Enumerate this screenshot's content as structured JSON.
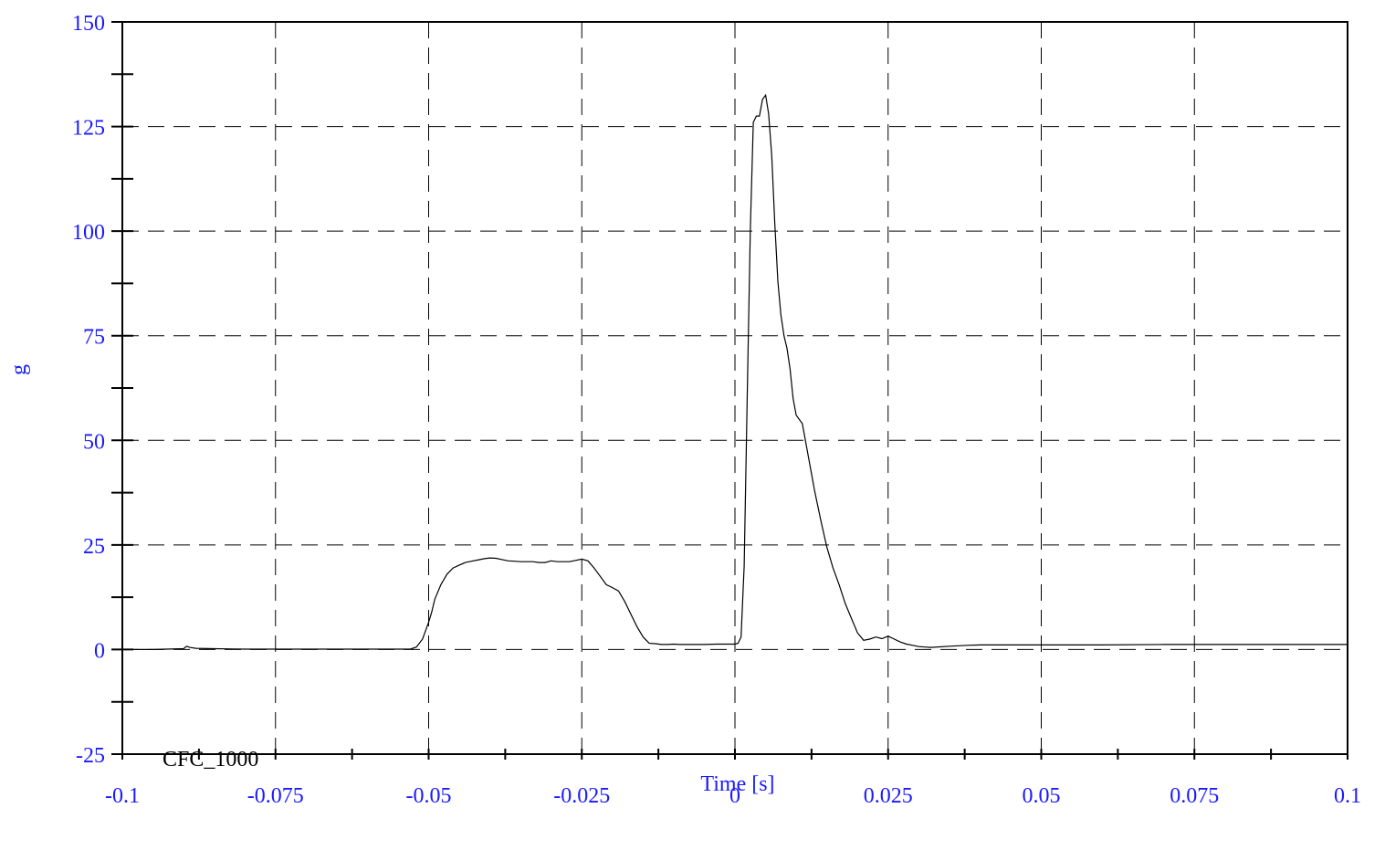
{
  "chart_data": {
    "type": "line",
    "title": "",
    "xlabel": "Time [s]",
    "ylabel": "g",
    "xlim": [
      -0.1,
      0.1
    ],
    "ylim": [
      -25,
      150
    ],
    "x_ticks": [
      -0.1,
      -0.075,
      -0.05,
      -0.025,
      0,
      0.025,
      0.05,
      0.075,
      0.1
    ],
    "x_tick_labels": [
      "-0.1",
      "-0.075",
      "-0.05",
      "-0.025",
      "0",
      "0.025",
      "0.05",
      "0.075",
      "0.1"
    ],
    "y_ticks": [
      -25,
      0,
      25,
      50,
      75,
      100,
      125,
      150
    ],
    "y_tick_labels": [
      "-25",
      "0",
      "25",
      "50",
      "75",
      "100",
      "125",
      "150"
    ],
    "grid": true,
    "annotations": [
      "CFC_1000"
    ],
    "series": [
      {
        "x": [
          -0.1,
          -0.095,
          -0.09,
          -0.0895,
          -0.089,
          -0.088,
          -0.085,
          -0.08,
          -0.07,
          -0.06,
          -0.055,
          -0.053,
          -0.052,
          -0.051,
          -0.05,
          -0.0495,
          -0.049,
          -0.048,
          -0.047,
          -0.046,
          -0.045,
          -0.044,
          -0.043,
          -0.042,
          -0.041,
          -0.04,
          -0.039,
          -0.038,
          -0.037,
          -0.036,
          -0.035,
          -0.034,
          -0.033,
          -0.032,
          -0.031,
          -0.03,
          -0.029,
          -0.028,
          -0.027,
          -0.026,
          -0.025,
          -0.024,
          -0.023,
          -0.022,
          -0.021,
          -0.02,
          -0.019,
          -0.018,
          -0.017,
          -0.016,
          -0.015,
          -0.014,
          -0.013,
          -0.012,
          -0.011,
          -0.01,
          -0.009,
          -0.007,
          -0.005,
          -0.003,
          -0.001,
          0.0,
          0.0005,
          0.001,
          0.0015,
          0.002,
          0.0025,
          0.003,
          0.0035,
          0.004,
          0.0045,
          0.005,
          0.0055,
          0.006,
          0.0065,
          0.007,
          0.0075,
          0.008,
          0.0085,
          0.009,
          0.0095,
          0.01,
          0.011,
          0.012,
          0.013,
          0.014,
          0.015,
          0.016,
          0.017,
          0.018,
          0.019,
          0.02,
          0.021,
          0.022,
          0.023,
          0.024,
          0.025,
          0.026,
          0.027,
          0.028,
          0.029,
          0.03,
          0.032,
          0.035,
          0.038,
          0.04,
          0.045,
          0.05,
          0.06,
          0.07,
          0.08,
          0.09,
          0.1
        ],
        "y": [
          0,
          0,
          0.2,
          0.8,
          0.5,
          0.3,
          0.2,
          0.1,
          0.1,
          0.1,
          0.1,
          0.1,
          0.6,
          2.5,
          6.5,
          9,
          12,
          15.5,
          18,
          19.5,
          20.2,
          20.8,
          21.1,
          21.4,
          21.7,
          21.9,
          21.8,
          21.5,
          21.2,
          21.1,
          21.0,
          21.0,
          21.0,
          20.8,
          20.8,
          21.2,
          21.0,
          21.0,
          21.0,
          21.3,
          21.6,
          21.2,
          19.5,
          17.5,
          15.5,
          14.8,
          14.0,
          11.5,
          8.5,
          5.5,
          3.0,
          1.5,
          1.4,
          1.2,
          1.2,
          1.3,
          1.2,
          1.2,
          1.2,
          1.3,
          1.3,
          1.3,
          1.5,
          3.0,
          20,
          60,
          100,
          126,
          127.5,
          127.5,
          131.5,
          132.5,
          128,
          118,
          102,
          88,
          80,
          75,
          72,
          67,
          60,
          56,
          54,
          46,
          38,
          31,
          24.5,
          19.5,
          15.5,
          11,
          7.5,
          4.0,
          2.2,
          2.5,
          3.0,
          2.6,
          3.2,
          2.5,
          1.8,
          1.3,
          1.0,
          0.7,
          0.5,
          0.8,
          1.0,
          1.1,
          1.1,
          1.1,
          1.1,
          1.2,
          1.2,
          1.2,
          1.2
        ]
      }
    ]
  }
}
